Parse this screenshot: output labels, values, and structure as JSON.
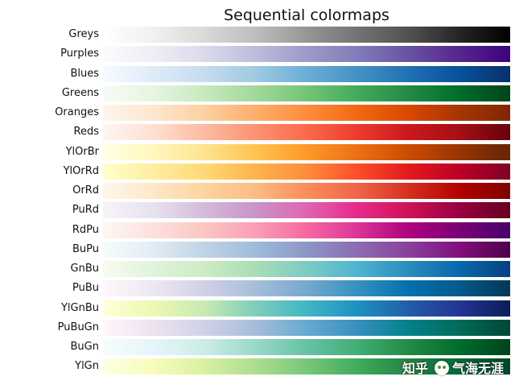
{
  "chart_data": {
    "type": "heatmap",
    "title": "Sequential colormaps",
    "xlabel": "",
    "ylabel": "",
    "colormaps": [
      {
        "name": "Greys",
        "colors": [
          "#ffffff",
          "#f0f0f0",
          "#d9d9d9",
          "#bdbdbd",
          "#969696",
          "#737373",
          "#525252",
          "#252525",
          "#000000"
        ]
      },
      {
        "name": "Purples",
        "colors": [
          "#fcfbfd",
          "#efedf5",
          "#dadaeb",
          "#bcbddc",
          "#9e9ac8",
          "#807dba",
          "#6a51a3",
          "#54278f",
          "#3f007d"
        ]
      },
      {
        "name": "Blues",
        "colors": [
          "#f7fbff",
          "#deebf7",
          "#c6dbef",
          "#9ecae1",
          "#6baed6",
          "#4292c6",
          "#2171b5",
          "#08519c",
          "#08306b"
        ]
      },
      {
        "name": "Greens",
        "colors": [
          "#f7fcf5",
          "#e5f5e0",
          "#c7e9c0",
          "#a1d99b",
          "#74c476",
          "#41ab5d",
          "#238b45",
          "#006d2c",
          "#00441b"
        ]
      },
      {
        "name": "Oranges",
        "colors": [
          "#fff5eb",
          "#fee6ce",
          "#fdd0a2",
          "#fdae6b",
          "#fd8d3c",
          "#f16913",
          "#d94801",
          "#a63603",
          "#7f2704"
        ]
      },
      {
        "name": "Reds",
        "colors": [
          "#fff5f0",
          "#fee0d2",
          "#fcbba1",
          "#fc9272",
          "#fb6a4a",
          "#ef3b2c",
          "#cb181d",
          "#a50f15",
          "#67000d"
        ]
      },
      {
        "name": "YlOrBr",
        "colors": [
          "#ffffe5",
          "#fff7bc",
          "#fee391",
          "#fec44f",
          "#fe9929",
          "#ec7014",
          "#cc4c02",
          "#993404",
          "#662506"
        ]
      },
      {
        "name": "YlOrRd",
        "colors": [
          "#ffffcc",
          "#ffeda0",
          "#fed976",
          "#feb24c",
          "#fd8d3c",
          "#fc4e2a",
          "#e31a1c",
          "#bd0026",
          "#800026"
        ]
      },
      {
        "name": "OrRd",
        "colors": [
          "#fff7ec",
          "#fee8c8",
          "#fdd49e",
          "#fdbb84",
          "#fc8d59",
          "#ef6548",
          "#d7301f",
          "#b30000",
          "#7f0000"
        ]
      },
      {
        "name": "PuRd",
        "colors": [
          "#f7f4f9",
          "#e7e1ef",
          "#d4b9da",
          "#c994c7",
          "#df65b0",
          "#e7298a",
          "#ce1256",
          "#980043",
          "#67001f"
        ]
      },
      {
        "name": "RdPu",
        "colors": [
          "#fff7f3",
          "#fde0dd",
          "#fcc5c0",
          "#fa9fb5",
          "#f768a1",
          "#dd3497",
          "#ae017e",
          "#7a0177",
          "#49006a"
        ]
      },
      {
        "name": "BuPu",
        "colors": [
          "#f7fcfd",
          "#e0ecf4",
          "#bfd3e6",
          "#9ebcda",
          "#8c96c6",
          "#8c6bb1",
          "#88419d",
          "#810f7c",
          "#4d004b"
        ]
      },
      {
        "name": "GnBu",
        "colors": [
          "#f7fcf0",
          "#e0f3db",
          "#ccebc5",
          "#a8ddb5",
          "#7bccc4",
          "#4eb3d3",
          "#2b8cbe",
          "#0868ac",
          "#084081"
        ]
      },
      {
        "name": "PuBu",
        "colors": [
          "#fff7fb",
          "#ece7f2",
          "#d0d1e6",
          "#a6bddb",
          "#74a9cf",
          "#3690c0",
          "#0570b0",
          "#045a8d",
          "#023858"
        ]
      },
      {
        "name": "YlGnBu",
        "colors": [
          "#ffffd9",
          "#edf8b1",
          "#c7e9b4",
          "#7fcdbb",
          "#41b6c4",
          "#1d91c0",
          "#225ea8",
          "#253494",
          "#081d58"
        ]
      },
      {
        "name": "PuBuGn",
        "colors": [
          "#fff7fb",
          "#ece2f0",
          "#d0d1e6",
          "#a6bddb",
          "#67a9cf",
          "#3690c0",
          "#02818a",
          "#016c59",
          "#014636"
        ]
      },
      {
        "name": "BuGn",
        "colors": [
          "#f7fcfd",
          "#e5f5f9",
          "#ccece6",
          "#99d8c9",
          "#66c2a4",
          "#41ae76",
          "#238b45",
          "#006d2c",
          "#00441b"
        ]
      },
      {
        "name": "YlGn",
        "colors": [
          "#ffffe5",
          "#f7fcb9",
          "#d9f0a3",
          "#addd8e",
          "#78c679",
          "#41ab5d",
          "#238443",
          "#006837",
          "#004529"
        ]
      }
    ]
  },
  "watermark": {
    "text_left": "知乎",
    "text_right": "气海无涯"
  }
}
